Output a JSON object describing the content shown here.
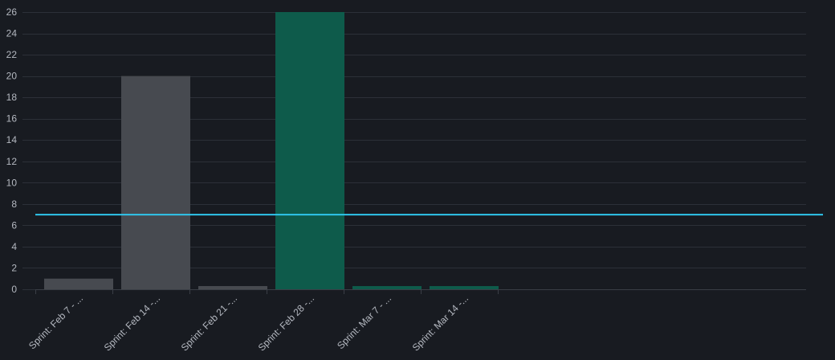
{
  "chart_data": {
    "type": "bar",
    "categories": [
      "Sprint: Feb 7 - ...",
      "Sprint: Feb 14 -...",
      "Sprint: Feb 21 -...",
      "Sprint: Feb 28 -...",
      "Sprint: Mar 7 - ...",
      "Sprint: Mar 14 -..."
    ],
    "values": [
      1,
      20,
      0.3,
      26,
      0.3,
      0.3
    ],
    "bar_colors": [
      "#474a50",
      "#474a50",
      "#474a50",
      "#0e5b4b",
      "#0e5b4b",
      "#0e5b4b"
    ],
    "ylim": [
      0,
      26
    ],
    "yticks": [
      0,
      2,
      4,
      6,
      8,
      10,
      12,
      14,
      16,
      18,
      20,
      22,
      24,
      26
    ],
    "category_slots": 10,
    "reference_line": {
      "value": 7,
      "color": "#2fc5ec"
    },
    "grid": true,
    "colors": {
      "background": "#181b21",
      "grid": "#2c3038",
      "axis": "#3a3e46",
      "text": "#b4b8c0"
    }
  }
}
